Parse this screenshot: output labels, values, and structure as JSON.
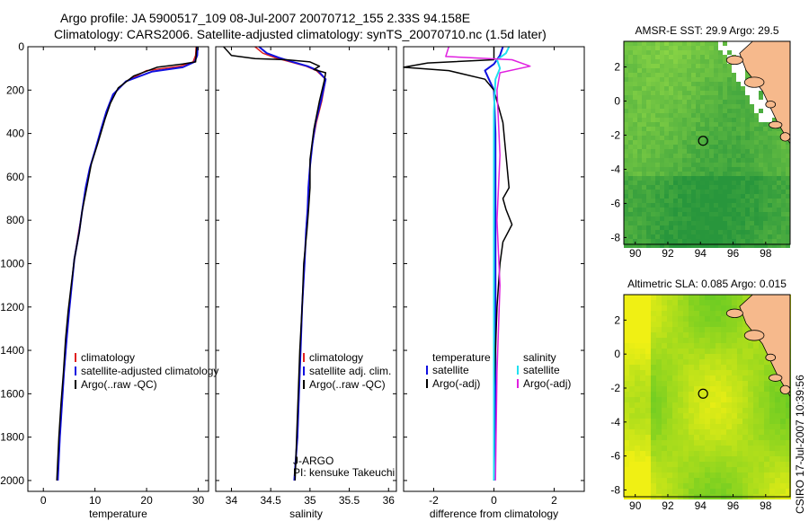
{
  "header": {
    "line1": "Argo profile: JA 5900517_109 08-Jul-2007 20070712_155 2.33S 94.158E",
    "line2": "Climatology: CARS2006. Satellite-adjusted climatology: synTS_20070710.nc (1.5d later)"
  },
  "side_stamp": "CSIRO 17-Jul-2007 10:39:56",
  "colors": {
    "climatology": "#e02020",
    "satellite": "#1010e0",
    "argo": "#000000",
    "salinity_satellite": "#20e0f0",
    "salinity_argo": "#e020e0",
    "map_land": "#f6b98c",
    "map_nodata": "#ffffff"
  },
  "chart_data": [
    {
      "type": "line",
      "panel": "temperature",
      "xlabel": "temperature",
      "ylabel": "",
      "xlim": [
        -3,
        32
      ],
      "ylim": [
        2050,
        0
      ],
      "xticks": [
        "0",
        "10",
        "20",
        "30"
      ],
      "xtick_values": [
        0,
        10,
        20,
        30
      ],
      "yticks": [
        "0",
        "200",
        "400",
        "600",
        "800",
        "1000",
        "1200",
        "1400",
        "1600",
        "1800",
        "2000"
      ],
      "ytick_values": [
        0,
        200,
        400,
        600,
        800,
        1000,
        1200,
        1400,
        1600,
        1800,
        2000
      ],
      "legend": [
        "climatology",
        "satellite-adjusted climatology",
        "Argo(..raw -QC)"
      ],
      "series": [
        {
          "name": "climatology",
          "color_key": "climatology",
          "x": [
            29.6,
            29.5,
            29.0,
            26.5,
            20.0,
            16.0,
            13.5,
            12.2,
            11.2,
            10.0,
            9.0,
            8.2,
            7.5,
            6.8,
            6.0,
            5.5,
            5.0,
            4.5,
            4.0,
            3.6,
            3.2,
            2.8
          ],
          "y": [
            0,
            40,
            70,
            90,
            110,
            160,
            220,
            300,
            380,
            480,
            560,
            650,
            760,
            860,
            980,
            1100,
            1220,
            1350,
            1500,
            1650,
            1800,
            2000
          ]
        },
        {
          "name": "satellite-adjusted climatology",
          "color_key": "satellite",
          "x": [
            29.9,
            29.8,
            29.3,
            27.0,
            21.0,
            16.0,
            13.5,
            12.2,
            11.2,
            10.0,
            9.0,
            8.2,
            7.5,
            6.9,
            6.0,
            5.5,
            5.0,
            4.5,
            4.0,
            3.6,
            3.2,
            2.8
          ],
          "y": [
            0,
            40,
            70,
            95,
            115,
            160,
            220,
            300,
            380,
            480,
            560,
            650,
            760,
            860,
            980,
            1100,
            1220,
            1350,
            1500,
            1650,
            1800,
            2000
          ]
        },
        {
          "name": "Argo(..raw -QC)",
          "color_key": "argo",
          "x": [
            29.7,
            29.6,
            29.5,
            27.0,
            22.0,
            17.5,
            14.5,
            13.0,
            12.0,
            10.5,
            9.3,
            8.5,
            7.5,
            7.0,
            6.0,
            5.4,
            4.8,
            4.3,
            3.9,
            3.4,
            3.0,
            2.6
          ],
          "y": [
            0,
            40,
            70,
            80,
            95,
            135,
            190,
            260,
            330,
            450,
            540,
            640,
            760,
            850,
            980,
            1100,
            1220,
            1350,
            1500,
            1650,
            1800,
            2000
          ]
        }
      ]
    },
    {
      "type": "line",
      "panel": "salinity",
      "xlabel": "salinity",
      "ylabel": "",
      "xlim": [
        33.8,
        36.1
      ],
      "ylim": [
        2050,
        0
      ],
      "xticks": [
        "34",
        "34.5",
        "35",
        "35.5",
        "36"
      ],
      "xtick_values": [
        34,
        34.5,
        35,
        35.5,
        36
      ],
      "legend": [
        "climatology",
        "satellite adj. clim.",
        "Argo(..raw -QC)"
      ],
      "annotations": [
        "J-ARGO",
        "PI: kensuke Takeuchi"
      ],
      "series": [
        {
          "name": "climatology",
          "color_key": "climatology",
          "x": [
            34.3,
            34.4,
            34.55,
            34.75,
            34.95,
            35.08,
            35.2,
            35.15,
            35.08,
            35.03,
            35.0,
            34.98,
            34.97,
            34.95,
            34.93,
            34.9,
            34.88,
            34.86,
            34.84,
            34.82,
            34.8
          ],
          "y": [
            0,
            30,
            50,
            70,
            90,
            110,
            150,
            250,
            350,
            450,
            550,
            650,
            750,
            850,
            1000,
            1200,
            1400,
            1600,
            1800,
            1900,
            2000
          ]
        },
        {
          "name": "satellite adj. clim.",
          "color_key": "satellite",
          "x": [
            34.35,
            34.45,
            34.6,
            34.78,
            34.97,
            35.1,
            35.2,
            35.14,
            35.07,
            35.03,
            35.0,
            34.98,
            34.97,
            34.95,
            34.93,
            34.9,
            34.88,
            34.86,
            34.84,
            34.82,
            34.8
          ],
          "y": [
            0,
            30,
            50,
            70,
            90,
            110,
            150,
            250,
            350,
            450,
            550,
            650,
            750,
            850,
            1000,
            1200,
            1400,
            1600,
            1800,
            1900,
            2000
          ]
        },
        {
          "name": "Argo(..raw -QC)",
          "color_key": "argo",
          "x": [
            33.9,
            34.0,
            34.3,
            34.7,
            35.0,
            35.12,
            35.05,
            35.2,
            35.18,
            35.12,
            35.05,
            35.0,
            35.0,
            34.98,
            34.96,
            34.92,
            34.9,
            34.87,
            34.85,
            34.83,
            34.81
          ],
          "y": [
            0,
            40,
            55,
            60,
            70,
            90,
            105,
            120,
            160,
            250,
            380,
            520,
            650,
            760,
            850,
            1000,
            1200,
            1400,
            1600,
            1800,
            2000
          ]
        }
      ]
    },
    {
      "type": "line",
      "panel": "difference",
      "xlabel": "difference from climatology",
      "ylabel": "",
      "xlim": [
        -3,
        3
      ],
      "ylim": [
        2050,
        0
      ],
      "xticks": [
        "-2",
        "0",
        "2"
      ],
      "xtick_values": [
        -2,
        0,
        2
      ],
      "legend_temperature": [
        "temperature",
        "satellite",
        "Argo(-adj)"
      ],
      "legend_salinity": [
        "salinity",
        "satellite",
        "Argo(-adj)"
      ],
      "series": [
        {
          "name": "temperature satellite",
          "color_key": "satellite",
          "x": [
            0.3,
            0.2,
            0.0,
            -0.3,
            -0.2,
            0.0,
            0.05,
            0.05,
            0.05,
            0.05,
            0.0
          ],
          "y": [
            0,
            40,
            80,
            110,
            140,
            200,
            400,
            800,
            1200,
            1600,
            2000
          ]
        },
        {
          "name": "temperature Argo(-adj)",
          "color_key": "argo",
          "x": [
            0.0,
            0.0,
            -2.2,
            -3.0,
            -1.5,
            -0.3,
            0.0,
            0.3,
            0.4,
            0.5,
            0.3,
            0.4,
            0.6,
            0.3,
            0.2,
            0.1,
            0.0,
            0.0
          ],
          "y": [
            0,
            60,
            75,
            95,
            110,
            150,
            200,
            350,
            500,
            650,
            700,
            750,
            820,
            900,
            1000,
            1200,
            1600,
            2000
          ]
        },
        {
          "name": "salinity satellite",
          "color_key": "salinity_satellite",
          "x": [
            0.5,
            0.4,
            0.1,
            0.2,
            0.05,
            0.0,
            0.0,
            0.0,
            0.0,
            0.0
          ],
          "y": [
            0,
            30,
            60,
            100,
            150,
            300,
            700,
            1100,
            1500,
            2000
          ]
        },
        {
          "name": "salinity Argo(-adj)",
          "color_key": "salinity_argo",
          "x": [
            -1.5,
            -1.6,
            0.6,
            1.2,
            0.2,
            0.1,
            0.2,
            0.1,
            0.2,
            0.1,
            0.05
          ],
          "y": [
            0,
            45,
            60,
            90,
            120,
            200,
            500,
            800,
            1100,
            1500,
            2000
          ]
        }
      ]
    },
    {
      "type": "heatmap",
      "panel": "map-sst",
      "title": "AMSR-E SST: 29.9 Argo: 29.5",
      "xlim": [
        89.3,
        99.5
      ],
      "ylim": [
        -8.4,
        3.5
      ],
      "xticks": [
        "90",
        "92",
        "94",
        "96",
        "98"
      ],
      "xtick_values": [
        90,
        92,
        94,
        96,
        98
      ],
      "yticks": [
        "2",
        "0",
        "-2",
        "-4",
        "-6",
        "-8"
      ],
      "ytick_values": [
        2,
        0,
        -2,
        -4,
        -6,
        -8
      ],
      "marker": {
        "lon": 94.16,
        "lat": -2.33
      }
    },
    {
      "type": "heatmap",
      "panel": "map-sla",
      "title": "Altimetric SLA: 0.085 Argo: 0.015",
      "xlim": [
        89.3,
        99.5
      ],
      "ylim": [
        -8.4,
        3.5
      ],
      "xticks": [
        "90",
        "92",
        "94",
        "96",
        "98"
      ],
      "xtick_values": [
        90,
        92,
        94,
        96,
        98
      ],
      "yticks": [
        "2",
        "0",
        "-2",
        "-4",
        "-6",
        "-8"
      ],
      "ytick_values": [
        2,
        0,
        -2,
        -4,
        -6,
        -8
      ],
      "marker": {
        "lon": 94.16,
        "lat": -2.33
      }
    }
  ]
}
